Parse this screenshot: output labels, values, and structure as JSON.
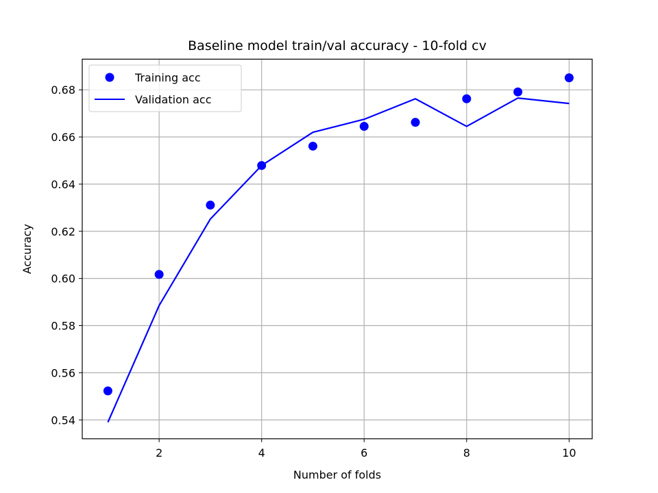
{
  "chart_data": {
    "type": "line",
    "title": "Baseline model train/val accuracy - 10-fold cv",
    "xlabel": "Number of folds",
    "ylabel": "Accuracy",
    "xlim": [
      0.5,
      10.45
    ],
    "ylim": [
      0.532,
      0.693
    ],
    "x_ticks": [
      2,
      4,
      6,
      8,
      10
    ],
    "y_ticks": [
      0.54,
      0.56,
      0.58,
      0.6,
      0.62,
      0.64,
      0.66,
      0.68
    ],
    "x_tick_labels": [
      "2",
      "4",
      "6",
      "8",
      "10"
    ],
    "y_tick_labels": [
      "0.54",
      "0.56",
      "0.58",
      "0.60",
      "0.62",
      "0.64",
      "0.66",
      "0.68"
    ],
    "grid": true,
    "legend_position": "top-left",
    "x": [
      1,
      2,
      3,
      4,
      5,
      6,
      7,
      8,
      9,
      10
    ],
    "series": [
      {
        "name": "Training acc",
        "style": "scatter",
        "color": "#0000ff",
        "values": [
          0.5523,
          0.6017,
          0.6311,
          0.6479,
          0.6561,
          0.6645,
          0.6662,
          0.6762,
          0.6791,
          0.6851
        ]
      },
      {
        "name": "Validation acc",
        "style": "line",
        "color": "#0000ff",
        "values": [
          0.539,
          0.5885,
          0.6252,
          0.6479,
          0.662,
          0.6675,
          0.6762,
          0.6645,
          0.6765,
          0.6742
        ]
      }
    ]
  }
}
